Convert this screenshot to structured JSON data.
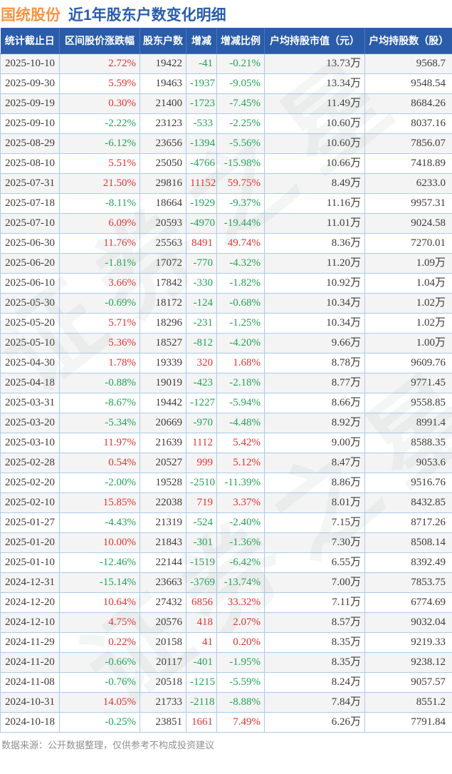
{
  "title": {
    "stock": "国统股份",
    "subtitle": "近1年股东户数变化明细"
  },
  "chart_data": {
    "type": "table",
    "title": "国统股份 近1年股东户数变化明细",
    "columns": [
      "统计截止日",
      "区间股价涨跌幅",
      "股东户数",
      "增减",
      "增减比例",
      "户均持股市值（元）",
      "户均持股数（股）"
    ],
    "rows": [
      [
        "2025-10-10",
        "2.72%",
        "19422",
        "-41",
        "-0.21%",
        "13.73万",
        "9568.7"
      ],
      [
        "2025-09-30",
        "5.59%",
        "19463",
        "-1937",
        "-9.05%",
        "13.34万",
        "9548.54"
      ],
      [
        "2025-09-19",
        "0.30%",
        "21400",
        "-1723",
        "-7.45%",
        "11.49万",
        "8684.26"
      ],
      [
        "2025-09-10",
        "-2.22%",
        "23123",
        "-533",
        "-2.25%",
        "10.60万",
        "8037.16"
      ],
      [
        "2025-08-29",
        "-6.12%",
        "23656",
        "-1394",
        "-5.56%",
        "10.60万",
        "7856.07"
      ],
      [
        "2025-08-10",
        "5.51%",
        "25050",
        "-4766",
        "-15.98%",
        "10.66万",
        "7418.89"
      ],
      [
        "2025-07-31",
        "21.50%",
        "29816",
        "11152",
        "59.75%",
        "8.49万",
        "6233.0"
      ],
      [
        "2025-07-18",
        "-8.11%",
        "18664",
        "-1929",
        "-9.37%",
        "11.16万",
        "9957.31"
      ],
      [
        "2025-07-10",
        "6.09%",
        "20593",
        "-4970",
        "-19.44%",
        "11.01万",
        "9024.58"
      ],
      [
        "2025-06-30",
        "11.76%",
        "25563",
        "8491",
        "49.74%",
        "8.36万",
        "7270.01"
      ],
      [
        "2025-06-20",
        "-1.81%",
        "17072",
        "-770",
        "-4.32%",
        "11.20万",
        "1.09万"
      ],
      [
        "2025-06-10",
        "3.66%",
        "17842",
        "-330",
        "-1.82%",
        "10.92万",
        "1.04万"
      ],
      [
        "2025-05-30",
        "-0.69%",
        "18172",
        "-124",
        "-0.68%",
        "10.34万",
        "1.02万"
      ],
      [
        "2025-05-20",
        "5.71%",
        "18296",
        "-231",
        "-1.25%",
        "10.34万",
        "1.02万"
      ],
      [
        "2025-05-10",
        "5.36%",
        "18527",
        "-812",
        "-4.20%",
        "9.66万",
        "1.00万"
      ],
      [
        "2025-04-30",
        "1.78%",
        "19339",
        "320",
        "1.68%",
        "8.78万",
        "9609.76"
      ],
      [
        "2025-04-18",
        "-0.88%",
        "19019",
        "-423",
        "-2.18%",
        "8.77万",
        "9771.45"
      ],
      [
        "2025-03-31",
        "-8.67%",
        "19442",
        "-1227",
        "-5.94%",
        "8.66万",
        "9558.85"
      ],
      [
        "2025-03-20",
        "-5.34%",
        "20669",
        "-970",
        "-4.48%",
        "8.92万",
        "8991.4"
      ],
      [
        "2025-03-10",
        "11.97%",
        "21639",
        "1112",
        "5.42%",
        "9.00万",
        "8588.35"
      ],
      [
        "2025-02-28",
        "0.54%",
        "20527",
        "999",
        "5.12%",
        "8.47万",
        "9053.6"
      ],
      [
        "2025-02-20",
        "-2.00%",
        "19528",
        "-2510",
        "-11.39%",
        "8.86万",
        "9516.76"
      ],
      [
        "2025-02-10",
        "15.85%",
        "22038",
        "719",
        "3.37%",
        "8.01万",
        "8432.85"
      ],
      [
        "2025-01-27",
        "-4.43%",
        "21319",
        "-524",
        "-2.40%",
        "7.15万",
        "8717.26"
      ],
      [
        "2025-01-20",
        "10.00%",
        "21843",
        "-301",
        "-1.36%",
        "7.30万",
        "8508.14"
      ],
      [
        "2025-01-10",
        "-12.46%",
        "22144",
        "-1519",
        "-6.42%",
        "6.55万",
        "8392.49"
      ],
      [
        "2024-12-31",
        "-15.14%",
        "23663",
        "-3769",
        "-13.74%",
        "7.00万",
        "7853.75"
      ],
      [
        "2024-12-20",
        "10.64%",
        "27432",
        "6856",
        "33.32%",
        "7.11万",
        "6774.69"
      ],
      [
        "2024-12-10",
        "4.75%",
        "20576",
        "418",
        "2.07%",
        "8.57万",
        "9032.04"
      ],
      [
        "2024-11-29",
        "0.22%",
        "20158",
        "41",
        "0.20%",
        "8.35万",
        "9219.33"
      ],
      [
        "2024-11-20",
        "-0.66%",
        "20117",
        "-401",
        "-1.95%",
        "8.35万",
        "9238.12"
      ],
      [
        "2024-11-08",
        "-0.76%",
        "20518",
        "-1215",
        "-5.59%",
        "8.24万",
        "9057.57"
      ],
      [
        "2024-10-31",
        "14.05%",
        "21733",
        "-2118",
        "-8.88%",
        "7.84万",
        "8551.2"
      ],
      [
        "2024-10-18",
        "-0.25%",
        "23851",
        "1661",
        "7.49%",
        "6.26万",
        "7791.84"
      ]
    ],
    "color_rule": "columns 区间股价涨跌幅/增减/增减比例: positive=red, negative=green",
    "colored_columns": [
      1,
      3,
      4
    ]
  },
  "footer": {
    "text": "数据来源：公开数据整理，仅供参考不构成投资建议"
  },
  "watermark": {
    "text": "证券之星"
  },
  "colors": {
    "positive_red": "#e13333",
    "negative_green": "#21a357",
    "header_bg": "#2a5caa",
    "title_orange": "#f79443",
    "title_blue": "#2a5caa",
    "table_border": "#abcbe8",
    "row_alt_bg": "#f4f4f4",
    "footer_gray": "#909090"
  }
}
